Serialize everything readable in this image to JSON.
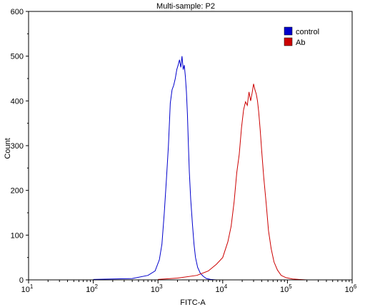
{
  "chart_data": {
    "type": "line",
    "title": "Multi-sample: P2",
    "xlabel": "FITC-A",
    "ylabel": "Count",
    "xscale": "log",
    "xlim": [
      10,
      1000000
    ],
    "ylim": [
      0,
      600
    ],
    "x_ticks": [
      {
        "base": "10",
        "exp": "1",
        "value": 10
      },
      {
        "base": "10",
        "exp": "2",
        "value": 100
      },
      {
        "base": "10",
        "exp": "3",
        "value": 1000
      },
      {
        "base": "10",
        "exp": "4",
        "value": 10000
      },
      {
        "base": "10",
        "exp": "5",
        "value": 100000
      },
      {
        "base": "10",
        "exp": "6",
        "value": 1000000
      }
    ],
    "y_ticks": [
      0,
      100,
      200,
      300,
      400,
      500,
      600
    ],
    "grid": false,
    "legend_position": "top-right",
    "series": [
      {
        "name": "control",
        "color": "#0000cc",
        "x": [
          100,
          200,
          400,
          700,
          900,
          1050,
          1150,
          1250,
          1350,
          1450,
          1550,
          1650,
          1750,
          1850,
          1950,
          2050,
          2150,
          2250,
          2350,
          2450,
          2550,
          2650,
          2750,
          2850,
          2950,
          3050,
          3200,
          3400,
          3600,
          3800,
          4100,
          4500,
          5000,
          5600,
          6500,
          8000
        ],
        "y": [
          1,
          2,
          3,
          10,
          20,
          45,
          80,
          150,
          225,
          300,
          395,
          425,
          435,
          450,
          470,
          480,
          492,
          475,
          500,
          470,
          480,
          455,
          420,
          370,
          300,
          240,
          180,
          125,
          80,
          50,
          28,
          15,
          8,
          3,
          1,
          0
        ]
      },
      {
        "name": "Ab",
        "color": "#cc0000",
        "x": [
          1000,
          2000,
          4000,
          6000,
          8000,
          10000,
          12000,
          13500,
          15000,
          16500,
          18000,
          19500,
          21000,
          22500,
          24000,
          25500,
          27000,
          28500,
          30000,
          31500,
          33000,
          34500,
          36000,
          38000,
          40000,
          43000,
          47000,
          51000,
          56000,
          62000,
          70000,
          80000,
          95000,
          120000,
          150000,
          200000
        ],
        "y": [
          1,
          4,
          10,
          20,
          35,
          50,
          85,
          120,
          175,
          240,
          280,
          340,
          380,
          398,
          390,
          420,
          400,
          418,
          438,
          425,
          415,
          400,
          375,
          335,
          290,
          230,
          170,
          110,
          70,
          40,
          22,
          10,
          5,
          2,
          1,
          0
        ]
      }
    ]
  }
}
